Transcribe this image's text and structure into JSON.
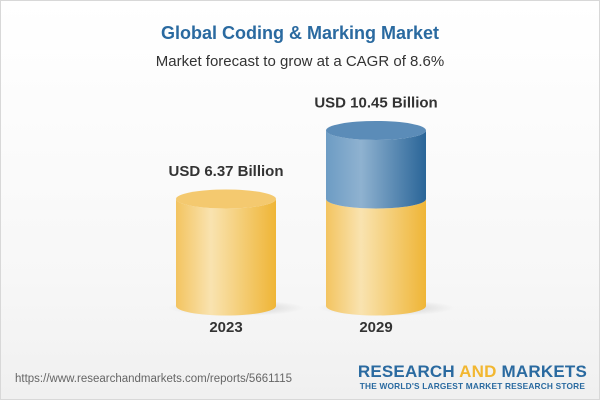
{
  "title": "Global Coding & Marking Market",
  "subtitle": "Market forecast to grow at a CAGR of 8.6%",
  "chart_data": {
    "type": "bar",
    "style": "3d-cylinder",
    "categories": [
      "2023",
      "2029"
    ],
    "values": [
      6.37,
      10.45
    ],
    "data_labels": [
      "USD 6.37 Billion",
      "USD 10.45 Billion"
    ],
    "unit": "USD Billion",
    "colors": {
      "base": "#f2c45a",
      "growth": "#3d7bb0"
    }
  },
  "footer": {
    "url": "https://www.researchandmarkets.com/reports/5661115",
    "logo_part1": "RESEARCH ",
    "logo_part2": "AND",
    "logo_part3": " MARKETS",
    "tagline": "THE WORLD'S LARGEST MARKET RESEARCH STORE"
  }
}
